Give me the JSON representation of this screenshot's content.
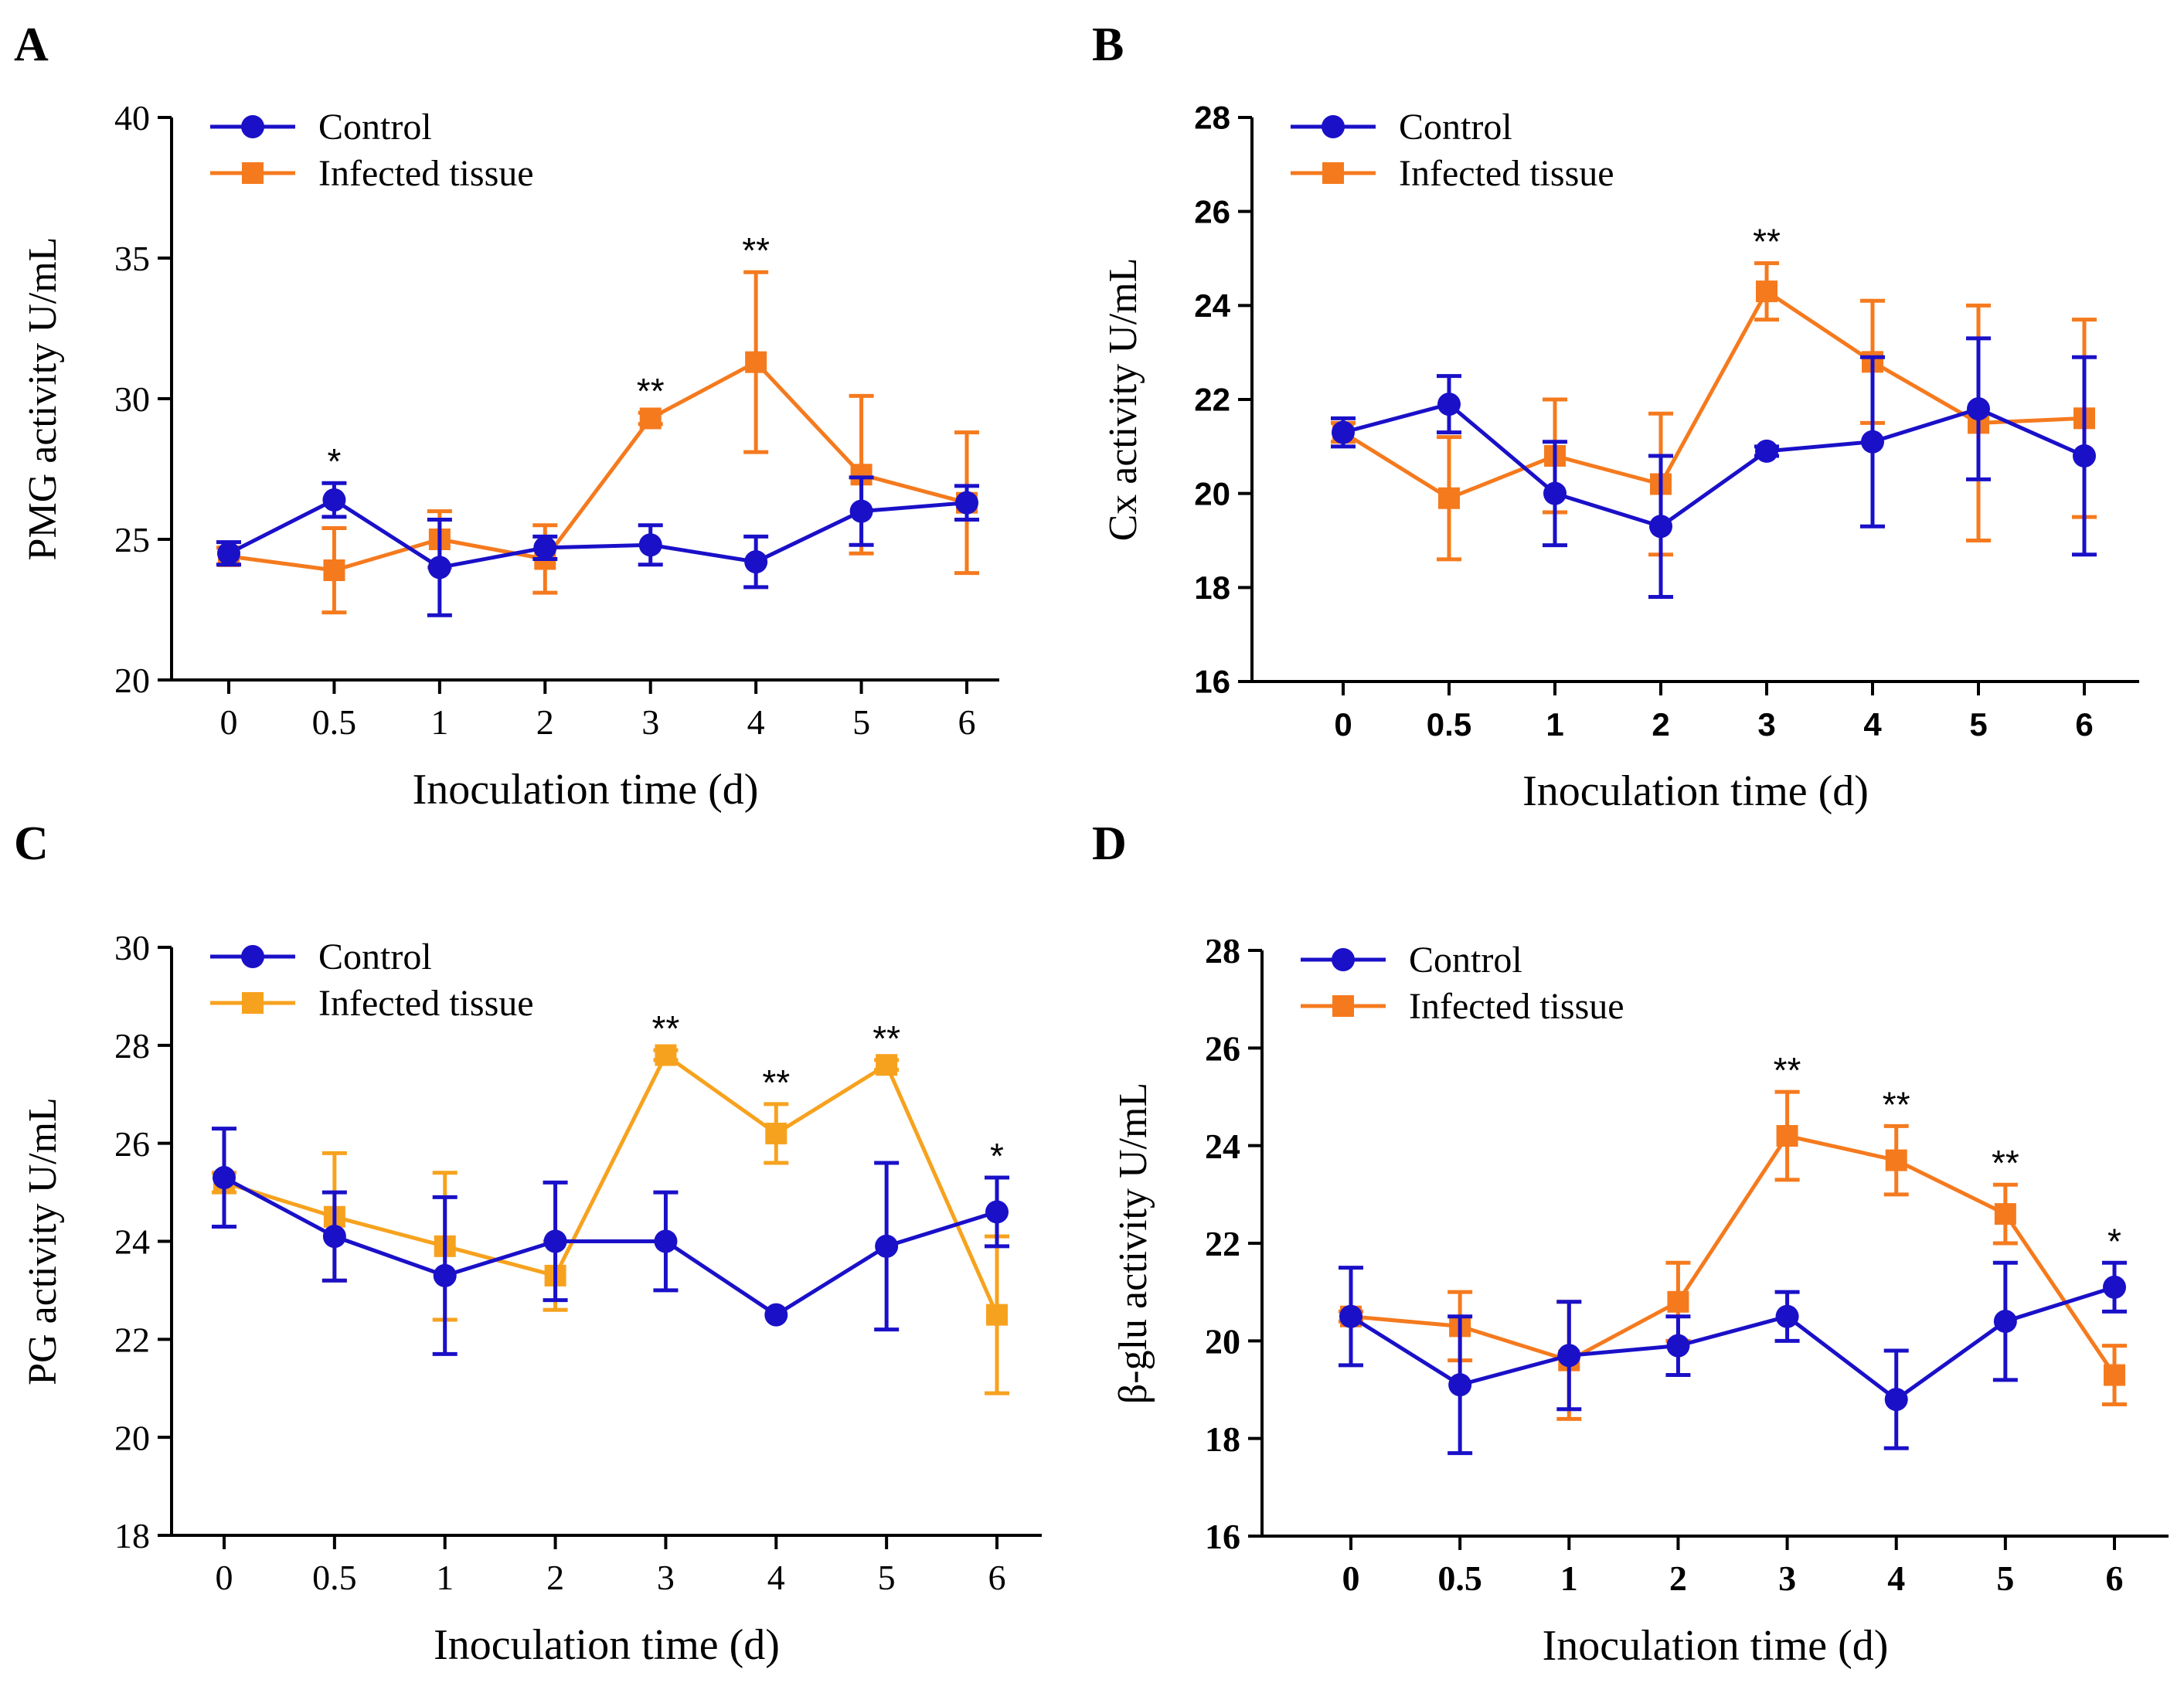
{
  "figure": {
    "panel_letters": [
      "A",
      "B",
      "C",
      "D"
    ]
  },
  "colors": {
    "control": "#1a10c8",
    "infected_AB": "#f57a1e",
    "infected_C": "#f7a21e",
    "infected_D": "#f57a1e"
  },
  "chart_data": [
    {
      "panel": "A",
      "type": "line",
      "title": "",
      "xlabel": "Inoculation time (d)",
      "ylabel": "PMG activity U/mL",
      "categories": [
        "0",
        "0.5",
        "1",
        "2",
        "3",
        "4",
        "5",
        "6"
      ],
      "ylim": [
        20,
        40
      ],
      "yticks": [
        20,
        25,
        30,
        35,
        40
      ],
      "tick_font": "serif",
      "legend": [
        "Control",
        "Infected tissue"
      ],
      "legend_position": "top-left",
      "series": [
        {
          "name": "Control",
          "marker": "circle",
          "color_key": "control",
          "values": [
            24.5,
            26.4,
            24.0,
            24.7,
            24.8,
            24.2,
            26.0,
            26.3
          ],
          "errors": [
            0.4,
            0.6,
            1.7,
            0.4,
            0.7,
            0.9,
            1.2,
            0.6
          ]
        },
        {
          "name": "Infected tissue",
          "marker": "square",
          "color_key": "infected_AB",
          "values": [
            24.4,
            23.9,
            25.0,
            24.3,
            29.3,
            31.3,
            27.3,
            26.3
          ],
          "errors": [
            0.3,
            1.5,
            1.0,
            1.2,
            0.2,
            3.2,
            2.8,
            2.5
          ]
        }
      ],
      "annotations": [
        {
          "category": "0.5",
          "text": "*"
        },
        {
          "category": "3",
          "text": "**"
        },
        {
          "category": "4",
          "text": "**"
        }
      ]
    },
    {
      "panel": "B",
      "type": "line",
      "title": "",
      "xlabel": "Inoculation time (d)",
      "ylabel": "Cx activity U/mL",
      "categories": [
        "0",
        "0.5",
        "1",
        "2",
        "3",
        "4",
        "5",
        "6"
      ],
      "ylim": [
        16,
        28
      ],
      "yticks": [
        16,
        18,
        20,
        22,
        24,
        26,
        28
      ],
      "tick_font": "sans-bold",
      "legend": [
        "Control",
        "Infected tissue"
      ],
      "legend_position": "top-left",
      "series": [
        {
          "name": "Control",
          "marker": "circle",
          "color_key": "control",
          "values": [
            21.3,
            21.9,
            20.0,
            19.3,
            20.9,
            21.1,
            21.8,
            20.8
          ],
          "errors": [
            0.3,
            0.6,
            1.1,
            1.5,
            0.1,
            1.8,
            1.5,
            2.1
          ]
        },
        {
          "name": "Infected tissue",
          "marker": "square",
          "color_key": "infected_AB",
          "values": [
            21.3,
            19.9,
            20.8,
            20.2,
            24.3,
            22.8,
            21.5,
            21.6
          ],
          "errors": [
            0.2,
            1.3,
            1.2,
            1.5,
            0.6,
            1.3,
            2.5,
            2.1
          ]
        }
      ],
      "annotations": [
        {
          "category": "3",
          "text": "**"
        }
      ]
    },
    {
      "panel": "C",
      "type": "line",
      "title": "",
      "xlabel": "Inoculation time (d)",
      "ylabel": "PG activity U/mL",
      "categories": [
        "0",
        "0.5",
        "1",
        "2",
        "3",
        "4",
        "5",
        "6"
      ],
      "ylim": [
        18,
        30
      ],
      "yticks": [
        18,
        20,
        22,
        24,
        26,
        28,
        30
      ],
      "tick_font": "serif",
      "legend": [
        "Control",
        "Infected tissue"
      ],
      "legend_position": "top-left",
      "series": [
        {
          "name": "Control",
          "marker": "circle",
          "color_key": "control",
          "values": [
            25.3,
            24.1,
            23.3,
            24.0,
            24.0,
            22.5,
            23.9,
            24.6
          ],
          "errors": [
            1.0,
            0.9,
            1.6,
            1.2,
            1.0,
            0.0,
            1.7,
            0.7
          ]
        },
        {
          "name": "Infected tissue",
          "marker": "square",
          "color_key": "infected_C",
          "values": [
            25.2,
            24.5,
            23.9,
            23.3,
            27.8,
            26.2,
            27.6,
            22.5
          ],
          "errors": [
            0.2,
            1.3,
            1.5,
            0.7,
            0.1,
            0.6,
            0.1,
            1.6
          ]
        }
      ],
      "annotations": [
        {
          "category": "3",
          "text": "**"
        },
        {
          "category": "4",
          "text": "**"
        },
        {
          "category": "5",
          "text": "**"
        },
        {
          "category": "6",
          "text": "*"
        }
      ]
    },
    {
      "panel": "D",
      "type": "line",
      "title": "",
      "xlabel": "Inoculation time (d)",
      "ylabel": "β-glu activity U/mL",
      "categories": [
        "0",
        "0.5",
        "1",
        "2",
        "3",
        "4",
        "5",
        "6"
      ],
      "ylim": [
        16,
        28
      ],
      "yticks": [
        16,
        18,
        20,
        22,
        24,
        26,
        28
      ],
      "tick_font": "serif-bold",
      "legend": [
        "Control",
        "Infected tissue"
      ],
      "legend_position": "top-left",
      "series": [
        {
          "name": "Control",
          "marker": "circle",
          "color_key": "control",
          "values": [
            20.5,
            19.1,
            19.7,
            19.9,
            20.5,
            18.8,
            20.4,
            21.1
          ],
          "errors": [
            1.0,
            1.4,
            1.1,
            0.6,
            0.5,
            1.0,
            1.2,
            0.5
          ]
        },
        {
          "name": "Infected tissue",
          "marker": "square",
          "color_key": "infected_D",
          "values": [
            20.5,
            20.3,
            19.6,
            20.8,
            24.2,
            23.7,
            22.6,
            19.3
          ],
          "errors": [
            0.1,
            0.7,
            1.2,
            0.8,
            0.9,
            0.7,
            0.6,
            0.6
          ]
        }
      ],
      "annotations": [
        {
          "category": "3",
          "text": "**"
        },
        {
          "category": "4",
          "text": "**"
        },
        {
          "category": "5",
          "text": "**"
        },
        {
          "category": "6",
          "text": "*"
        }
      ]
    }
  ]
}
